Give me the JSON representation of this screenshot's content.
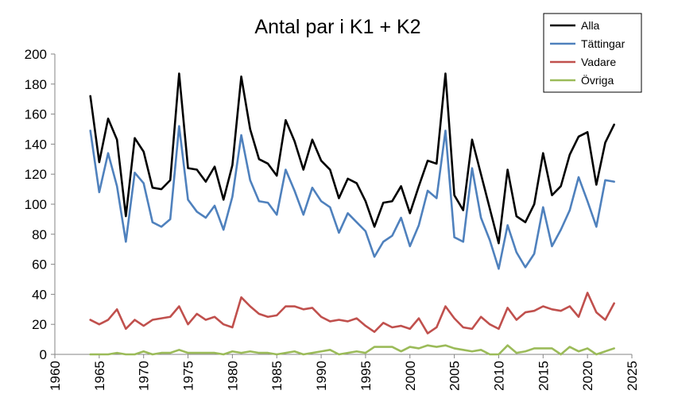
{
  "chart_data": {
    "type": "line",
    "title": "Antal par i K1 + K2",
    "xlabel": "",
    "ylabel": "",
    "xlim": [
      1960,
      2025
    ],
    "ylim": [
      0,
      200
    ],
    "x_ticks": [
      1960,
      1965,
      1970,
      1975,
      1980,
      1985,
      1990,
      1995,
      2000,
      2005,
      2010,
      2015,
      2020,
      2025
    ],
    "y_ticks": [
      0,
      20,
      40,
      60,
      80,
      100,
      120,
      140,
      160,
      180,
      200
    ],
    "legend_position": "top-right",
    "x": [
      1964,
      1965,
      1966,
      1967,
      1968,
      1969,
      1970,
      1971,
      1972,
      1973,
      1974,
      1975,
      1976,
      1977,
      1978,
      1979,
      1980,
      1981,
      1982,
      1983,
      1984,
      1985,
      1986,
      1987,
      1988,
      1989,
      1990,
      1991,
      1992,
      1993,
      1994,
      1995,
      1996,
      1997,
      1998,
      1999,
      2000,
      2001,
      2002,
      2003,
      2004,
      2005,
      2006,
      2007,
      2008,
      2009,
      2010,
      2011,
      2012,
      2013,
      2014,
      2015,
      2016,
      2017,
      2018,
      2019,
      2020,
      2021,
      2022,
      2023
    ],
    "series": [
      {
        "name": "Alla",
        "color": "#000000",
        "values": [
          172,
          128,
          157,
          143,
          92,
          144,
          135,
          111,
          110,
          116,
          187,
          124,
          123,
          115,
          125,
          103,
          126,
          185,
          150,
          130,
          127,
          119,
          156,
          142,
          123,
          143,
          129,
          123,
          104,
          117,
          114,
          102,
          85,
          101,
          102,
          112,
          94,
          112,
          129,
          127,
          187,
          106,
          96,
          143,
          120,
          97,
          74,
          123,
          92,
          88,
          100,
          134,
          106,
          112,
          133,
          145,
          148,
          113,
          141,
          153
        ]
      },
      {
        "name": "Tättingar",
        "color": "#4f81bd",
        "values": [
          149,
          108,
          134,
          112,
          75,
          121,
          114,
          88,
          85,
          90,
          152,
          103,
          95,
          91,
          99,
          83,
          105,
          146,
          116,
          102,
          101,
          93,
          123,
          109,
          93,
          111,
          102,
          98,
          81,
          94,
          88,
          82,
          65,
          75,
          79,
          91,
          72,
          86,
          109,
          104,
          149,
          78,
          75,
          124,
          91,
          76,
          57,
          86,
          68,
          58,
          67,
          98,
          72,
          83,
          96,
          118,
          102,
          85,
          116,
          115
        ]
      },
      {
        "name": "Vadare",
        "color": "#c0504d",
        "values": [
          23,
          20,
          23,
          30,
          17,
          23,
          19,
          23,
          24,
          25,
          32,
          20,
          27,
          23,
          25,
          20,
          18,
          38,
          32,
          27,
          25,
          26,
          32,
          32,
          30,
          31,
          25,
          22,
          23,
          22,
          24,
          19,
          15,
          21,
          18,
          19,
          17,
          24,
          14,
          18,
          32,
          24,
          18,
          17,
          25,
          20,
          17,
          31,
          23,
          28,
          29,
          32,
          30,
          29,
          32,
          25,
          41,
          28,
          23,
          34
        ]
      },
      {
        "name": "Övriga",
        "color": "#9bbb59",
        "values": [
          0,
          0,
          0,
          1,
          0,
          0,
          2,
          0,
          1,
          1,
          3,
          1,
          1,
          1,
          1,
          0,
          2,
          1,
          2,
          1,
          1,
          0,
          1,
          2,
          0,
          1,
          2,
          3,
          0,
          1,
          2,
          1,
          5,
          5,
          5,
          2,
          5,
          4,
          6,
          5,
          6,
          4,
          3,
          2,
          3,
          0,
          0,
          6,
          1,
          2,
          4,
          4,
          4,
          0,
          5,
          2,
          4,
          0,
          2,
          4
        ]
      }
    ]
  }
}
